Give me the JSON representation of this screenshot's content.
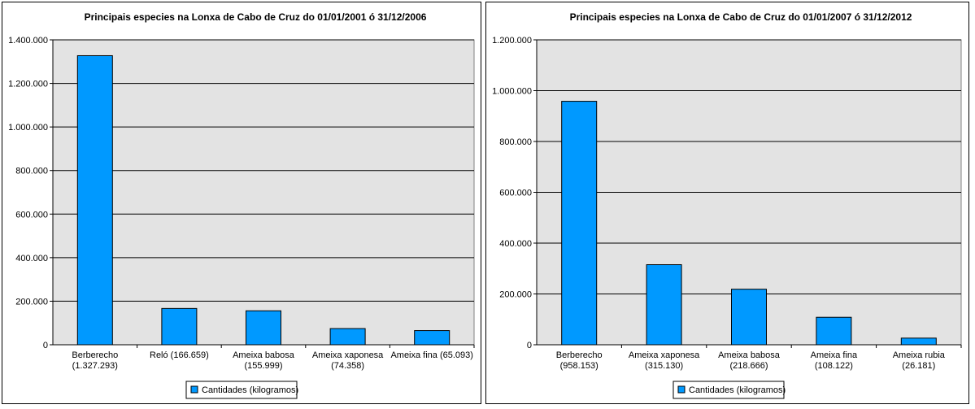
{
  "chart_data": [
    {
      "type": "bar",
      "title": "Principais especies na Lonxa de Cabo de Cruz do 01/01/2001 ó 31/12/2006",
      "categories": [
        [
          "Berberecho",
          "(1.327.293)"
        ],
        [
          "Reló  (166.659)"
        ],
        [
          "Ameixa babosa",
          "(155.999)"
        ],
        [
          "Ameixa xaponesa",
          "(74.358)"
        ],
        [
          "Ameixa fina  (65.093)"
        ]
      ],
      "values": [
        1327293,
        166659,
        155999,
        74358,
        65093
      ],
      "ylim": [
        0,
        1400000
      ],
      "yticks": [
        "0",
        "200.000",
        "400.000",
        "600.000",
        "800.000",
        "1.000.000",
        "1.200.000",
        "1.400.000"
      ],
      "series": [
        {
          "name": "Cantidades (kilogramos)"
        }
      ],
      "grid": true,
      "legend": "bottom",
      "colors": {
        "bar": "#0099ff",
        "plot_bg": "#e3e3e3"
      }
    },
    {
      "type": "bar",
      "title": "Principais especies na Lonxa de Cabo de Cruz do 01/01/2007 ó 31/12/2012",
      "categories": [
        [
          "Berberecho",
          "(958.153)"
        ],
        [
          "Ameixa xaponesa",
          "(315.130)"
        ],
        [
          "Ameixa babosa",
          "(218.666)"
        ],
        [
          "Ameixa fina",
          "(108.122)"
        ],
        [
          "Ameixa rubia",
          "(26.181)"
        ]
      ],
      "values": [
        958153,
        315130,
        218666,
        108122,
        26181
      ],
      "ylim": [
        0,
        1200000
      ],
      "yticks": [
        "0",
        "200.000",
        "400.000",
        "600.000",
        "800.000",
        "1.000.000",
        "1.200.000"
      ],
      "series": [
        {
          "name": "Cantidades (kilogramos)"
        }
      ],
      "grid": true,
      "legend": "bottom",
      "colors": {
        "bar": "#0099ff",
        "plot_bg": "#e3e3e3"
      }
    }
  ]
}
